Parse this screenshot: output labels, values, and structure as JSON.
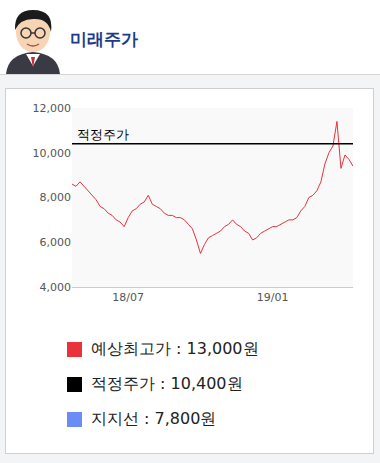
{
  "header": {
    "title": "미래주가"
  },
  "chart_data": {
    "type": "line",
    "categories": [
      null,
      null,
      null,
      null,
      null,
      null,
      null,
      null,
      null,
      null,
      null,
      null,
      null,
      null,
      "18/07",
      null,
      null,
      null,
      null,
      null,
      null,
      null,
      null,
      null,
      null,
      null,
      null,
      null,
      null,
      null,
      null,
      null,
      null,
      null,
      null,
      null,
      null,
      null,
      null,
      null,
      null,
      null,
      null,
      null,
      null,
      null,
      null,
      null,
      null,
      null,
      "19/01",
      null,
      null,
      null,
      null,
      null,
      null,
      null,
      null,
      null,
      null,
      null,
      null,
      null,
      null,
      null,
      null,
      null,
      null,
      null,
      null
    ],
    "values": [
      8600,
      8500,
      8700,
      8500,
      8300,
      8100,
      7900,
      7600,
      7500,
      7300,
      7200,
      7000,
      6900,
      6700,
      7100,
      7400,
      7500,
      7700,
      7800,
      8100,
      7700,
      7600,
      7500,
      7300,
      7200,
      7200,
      7100,
      7100,
      7000,
      6800,
      6600,
      6100,
      5500,
      5900,
      6200,
      6300,
      6400,
      6500,
      6700,
      6800,
      7000,
      6800,
      6700,
      6500,
      6400,
      6100,
      6200,
      6400,
      6500,
      6600,
      6700,
      6700,
      6800,
      6900,
      7000,
      7000,
      7100,
      7400,
      7600,
      8000,
      8100,
      8300,
      8700,
      9500,
      10000,
      10300,
      11400,
      9300,
      9900,
      9700,
      9400
    ],
    "color": "#e8333a",
    "ylim": [
      4000,
      12000
    ],
    "yticks": [
      {
        "value": 4000,
        "label": "4,000"
      },
      {
        "value": 6000,
        "label": "6,000"
      },
      {
        "value": 8000,
        "label": "8,000"
      },
      {
        "value": 10000,
        "label": "10,000"
      },
      {
        "value": 12000,
        "label": "12,000"
      }
    ],
    "grid": false,
    "reference_lines": [
      {
        "value": 10400,
        "label": "적정주가",
        "color": "#000000"
      }
    ]
  },
  "summary": [
    {
      "text": "예상최고가 : 13,000원",
      "color": "#e8333a"
    },
    {
      "text": "적정주가 : 10,400원",
      "color": "#000000"
    },
    {
      "text": "지지선 : 7,800원",
      "color": "#6b8cf5"
    }
  ]
}
